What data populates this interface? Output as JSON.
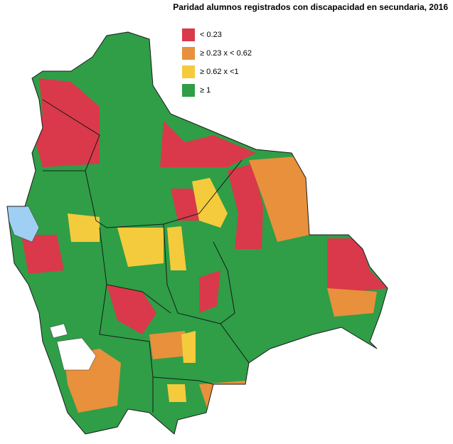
{
  "title": "Paridad alumnos registrados con discapacidad en secundaria, 2016",
  "legend": [
    {
      "label": "< 0.23",
      "color": "#d9394a"
    },
    {
      "label": "≥ 0.23 x < 0.62",
      "color": "#e8903c"
    },
    {
      "label": "≥ 0.62 x <1",
      "color": "#f4cb3c"
    },
    {
      "label": "≥ 1",
      "color": "#2f9e47"
    }
  ]
}
